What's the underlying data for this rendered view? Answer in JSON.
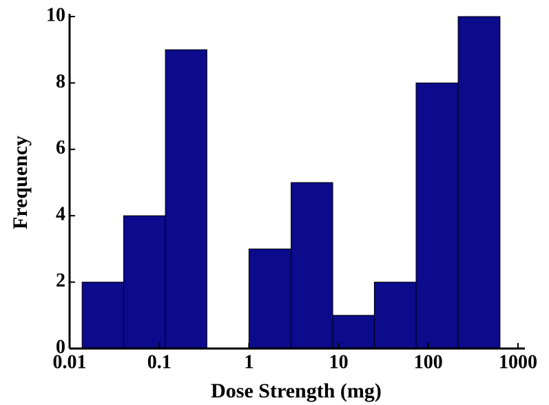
{
  "chart_data": {
    "type": "histogram",
    "xlabel": "Dose Strength (mg)",
    "ylabel": "Frequency",
    "bins": [
      0.0138,
      0.04,
      0.117,
      0.34,
      1,
      2.95,
      8.6,
      25,
      73,
      215,
      630
    ],
    "values": [
      2,
      4,
      9,
      0,
      3,
      5,
      1,
      2,
      8,
      10
    ],
    "color": "#0b0b8c",
    "xscale": "log",
    "xlim": [
      0.01,
      1000
    ],
    "xticks": [
      0.01,
      0.1,
      1,
      10,
      100,
      1000
    ],
    "ylim": [
      0,
      10
    ],
    "yticks": [
      0,
      2,
      4,
      6,
      8,
      10
    ],
    "grid": false
  }
}
